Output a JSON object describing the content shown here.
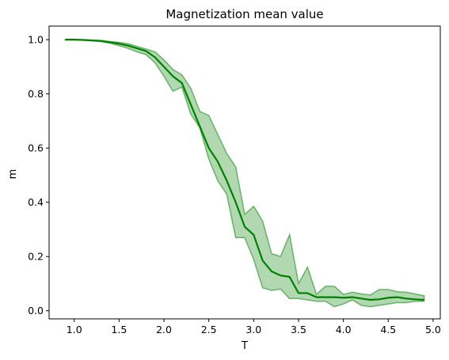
{
  "chart_data": {
    "type": "line",
    "title": "Magnetization mean value",
    "xlabel": "T",
    "ylabel": "m",
    "xlim": [
      0.72,
      5.08
    ],
    "ylim": [
      -0.03,
      1.05
    ],
    "xticks": [
      1.0,
      1.5,
      2.0,
      2.5,
      3.0,
      3.5,
      4.0,
      4.5,
      5.0
    ],
    "xtick_labels": [
      "1.0",
      "1.5",
      "2.0",
      "2.5",
      "3.0",
      "3.5",
      "4.0",
      "4.5",
      "5.0"
    ],
    "yticks": [
      0.0,
      0.2,
      0.4,
      0.6,
      0.8,
      1.0
    ],
    "ytick_labels": [
      "0.0",
      "0.2",
      "0.4",
      "0.6",
      "0.8",
      "1.0"
    ],
    "grid": false,
    "legend": "none",
    "colors": {
      "line": "#008000",
      "band_fill": "#b2d8b2",
      "band_edge": "#66b266"
    },
    "series": [
      {
        "role": "mean",
        "x": [
          0.9,
          1.0,
          1.1,
          1.2,
          1.3,
          1.4,
          1.5,
          1.6,
          1.7,
          1.8,
          1.9,
          2.0,
          2.1,
          2.2,
          2.3,
          2.4,
          2.5,
          2.6,
          2.7,
          2.8,
          2.9,
          3.0,
          3.1,
          3.2,
          3.3,
          3.4,
          3.5,
          3.6,
          3.7,
          3.8,
          3.9,
          4.0,
          4.1,
          4.2,
          4.3,
          4.4,
          4.5,
          4.6,
          4.7,
          4.8,
          4.9
        ],
        "values": [
          1.0,
          1.0,
          0.999,
          0.997,
          0.995,
          0.99,
          0.985,
          0.978,
          0.968,
          0.958,
          0.935,
          0.9,
          0.865,
          0.84,
          0.76,
          0.68,
          0.6,
          0.55,
          0.48,
          0.4,
          0.31,
          0.28,
          0.185,
          0.145,
          0.13,
          0.125,
          0.065,
          0.065,
          0.05,
          0.05,
          0.05,
          0.048,
          0.05,
          0.045,
          0.04,
          0.042,
          0.048,
          0.05,
          0.045,
          0.042,
          0.04
        ]
      },
      {
        "role": "upper",
        "x": [
          0.9,
          1.0,
          1.1,
          1.2,
          1.3,
          1.4,
          1.5,
          1.6,
          1.7,
          1.8,
          1.9,
          2.0,
          2.1,
          2.2,
          2.3,
          2.4,
          2.5,
          2.6,
          2.7,
          2.8,
          2.9,
          3.0,
          3.1,
          3.2,
          3.3,
          3.4,
          3.5,
          3.6,
          3.7,
          3.8,
          3.9,
          4.0,
          4.1,
          4.2,
          4.3,
          4.4,
          4.5,
          4.6,
          4.7,
          4.8,
          4.9
        ],
        "values": [
          1.0,
          1.0,
          1.0,
          0.998,
          0.997,
          0.993,
          0.99,
          0.985,
          0.975,
          0.965,
          0.955,
          0.925,
          0.89,
          0.87,
          0.82,
          0.735,
          0.72,
          0.65,
          0.58,
          0.53,
          0.355,
          0.385,
          0.33,
          0.21,
          0.2,
          0.28,
          0.1,
          0.16,
          0.06,
          0.09,
          0.09,
          0.06,
          0.068,
          0.062,
          0.058,
          0.078,
          0.078,
          0.07,
          0.068,
          0.062,
          0.055
        ]
      },
      {
        "role": "lower",
        "x": [
          0.9,
          1.0,
          1.1,
          1.2,
          1.3,
          1.4,
          1.5,
          1.6,
          1.7,
          1.8,
          1.9,
          2.0,
          2.1,
          2.2,
          2.3,
          2.4,
          2.5,
          2.6,
          2.7,
          2.8,
          2.9,
          3.0,
          3.1,
          3.2,
          3.3,
          3.4,
          3.5,
          3.6,
          3.7,
          3.8,
          3.9,
          4.0,
          4.1,
          4.2,
          4.3,
          4.4,
          4.5,
          4.6,
          4.7,
          4.8,
          4.9
        ],
        "values": [
          0.999,
          0.999,
          0.998,
          0.996,
          0.993,
          0.987,
          0.978,
          0.968,
          0.955,
          0.945,
          0.915,
          0.865,
          0.81,
          0.825,
          0.725,
          0.675,
          0.56,
          0.48,
          0.43,
          0.27,
          0.27,
          0.19,
          0.085,
          0.075,
          0.08,
          0.045,
          0.045,
          0.04,
          0.035,
          0.035,
          0.015,
          0.025,
          0.04,
          0.02,
          0.015,
          0.02,
          0.025,
          0.03,
          0.03,
          0.035,
          0.035
        ]
      }
    ]
  }
}
